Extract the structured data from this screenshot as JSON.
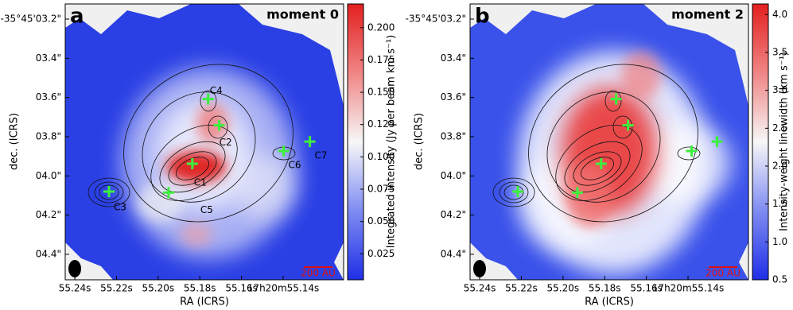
{
  "chart_data": [
    {
      "type": "map",
      "panel_label": "a",
      "title": "moment 0",
      "xlabel": "RA (ICRS)",
      "ylabel": "dec. (ICRS)",
      "colorbar_label": "Integrated intensity (Jy per beam km s⁻¹)",
      "scale_bar": "200 AU",
      "xlim": [
        55.2446,
        55.111
      ],
      "ylim": [
        4.53,
        3.123
      ],
      "xticks": [
        {
          "value": 55.24,
          "label": "55.24s"
        },
        {
          "value": 55.22,
          "label": "55.22s"
        },
        {
          "value": 55.2,
          "label": "55.20s"
        },
        {
          "value": 55.18,
          "label": "55.18s"
        },
        {
          "value": 55.16,
          "label": "55.16s"
        },
        {
          "value": 55.14,
          "label": "17h20m55.14s"
        }
      ],
      "yticks": [
        {
          "value": 3.2,
          "label": "-35°45'03.2\""
        },
        {
          "value": 3.4,
          "label": "03.4\""
        },
        {
          "value": 3.6,
          "label": "03.6\""
        },
        {
          "value": 3.8,
          "label": "03.8\""
        },
        {
          "value": 4.0,
          "label": "04.0\""
        },
        {
          "value": 4.2,
          "label": "04.2\""
        },
        {
          "value": 4.4,
          "label": "04.4\""
        }
      ],
      "clim": [
        0.0049,
        0.2183
      ],
      "cticks": [
        0.025,
        {
          "value": 0.05,
          "label": "0.050"
        },
        0.075,
        {
          "value": 0.1,
          "label": "0.100"
        },
        0.125,
        {
          "value": 0.15,
          "label": "0.150"
        },
        0.175,
        {
          "value": 0.2,
          "label": "0.200"
        }
      ],
      "sources": {
        "labels": [
          "C4",
          "C2",
          "C1",
          "C5",
          "C3",
          "C6",
          "C7"
        ],
        "x": [
          55.176,
          55.1707,
          55.1836,
          55.195,
          55.2236,
          55.1398,
          55.1272
        ],
        "y": [
          3.608,
          3.742,
          3.938,
          4.085,
          4.08,
          3.873,
          3.825
        ]
      }
    },
    {
      "type": "map",
      "panel_label": "b",
      "title": "moment 2",
      "xlabel": "RA (ICRS)",
      "ylabel": "dec. (ICRS)",
      "colorbar_label": "Intensity-weight linewidth (km s⁻¹)",
      "scale_bar": "200 AU",
      "xlim": [
        55.2446,
        55.111
      ],
      "ylim": [
        4.53,
        3.123
      ],
      "xticks": [
        {
          "value": 55.24,
          "label": "55.24s"
        },
        {
          "value": 55.22,
          "label": "55.22s"
        },
        {
          "value": 55.2,
          "label": "55.20s"
        },
        {
          "value": 55.18,
          "label": "55.18s"
        },
        {
          "value": 55.16,
          "label": "55.16s"
        },
        {
          "value": 55.14,
          "label": "17h20m55.14s"
        }
      ],
      "yticks": [
        {
          "value": 3.2,
          "label": "-35°45'03.2\""
        },
        {
          "value": 3.4,
          "label": "03.4\""
        },
        {
          "value": 3.6,
          "label": "03.6\""
        },
        {
          "value": 3.8,
          "label": "03.8\""
        },
        {
          "value": 4.0,
          "label": "04.0\""
        },
        {
          "value": 4.2,
          "label": "04.2\""
        },
        {
          "value": 4.4,
          "label": "04.4\""
        }
      ],
      "clim": [
        0.5,
        4.14
      ],
      "cticks": [
        0.5,
        {
          "value": 1.0,
          "label": "1.0"
        },
        1.5,
        {
          "value": 2.0,
          "label": "2.0"
        },
        2.5,
        {
          "value": 3.0,
          "label": "3.0"
        },
        3.5,
        {
          "value": 4.0,
          "label": "4.0"
        }
      ],
      "sources": {
        "x": [
          55.1745,
          55.1688,
          55.1817,
          55.1931,
          55.2217,
          55.1383,
          55.1261
        ],
        "y": [
          3.608,
          3.742,
          3.938,
          4.085,
          4.08,
          3.873,
          3.825
        ]
      }
    }
  ]
}
